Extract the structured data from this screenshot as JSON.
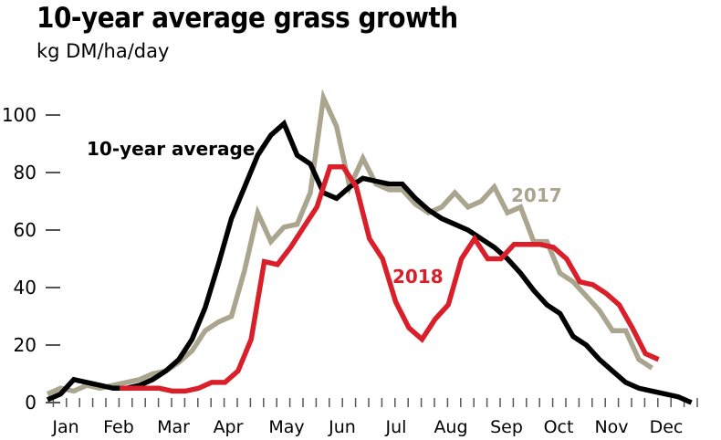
{
  "chart_data": {
    "type": "line",
    "title": "10-year average grass growth",
    "subtitle": "kg DM/ha/day",
    "xlabel": "",
    "ylabel": "kg DM/ha/day",
    "ylim": [
      0,
      110
    ],
    "yticks": [
      0,
      20,
      40,
      60,
      80,
      100
    ],
    "ytick_labels": [
      "0",
      "20",
      "40",
      "60",
      "80",
      "100"
    ],
    "x_unit": "week of year",
    "xlim": [
      0,
      50
    ],
    "month_labels": [
      "Jan",
      "Feb",
      "Mar",
      "Apr",
      "May",
      "Jun",
      "Jul",
      "Aug",
      "Sep",
      "Oct",
      "Nov",
      "Dec"
    ],
    "grid": false,
    "series": [
      {
        "name": "10-year average",
        "label": "10-year average",
        "color": "#000000",
        "start_week": 0,
        "values": [
          1,
          3,
          8,
          7,
          6,
          5,
          5,
          6,
          8,
          11,
          15,
          22,
          33,
          48,
          64,
          75,
          86,
          93,
          97,
          86,
          83,
          73,
          71,
          75,
          78,
          77,
          76,
          76,
          71,
          67,
          64,
          62,
          60,
          57,
          54,
          50,
          45,
          39,
          34,
          31,
          23,
          20,
          15,
          11,
          7,
          5,
          4,
          3,
          2,
          0
        ]
      },
      {
        "name": "2017",
        "label": "2017",
        "color": "#a9a58e",
        "start_week": 0,
        "values": [
          3,
          5,
          4,
          6,
          5,
          6,
          7,
          8,
          10,
          11,
          14,
          18,
          25,
          28,
          30,
          46,
          66,
          56,
          61,
          62,
          73,
          106,
          96,
          75,
          85,
          76,
          74,
          74,
          69,
          66,
          68,
          73,
          68,
          70,
          75,
          66,
          68,
          56,
          56,
          45,
          42,
          37,
          32,
          25,
          25,
          15,
          12
        ]
      },
      {
        "name": "2018",
        "label": "2018",
        "color": "#d9202a",
        "start_week": 5.5,
        "values": [
          5,
          5,
          5,
          5,
          4,
          4,
          5,
          7,
          7,
          11,
          22,
          49,
          48,
          54,
          61,
          68,
          82,
          82,
          75,
          57,
          50,
          35,
          26,
          22,
          29,
          34,
          50,
          57,
          50,
          50,
          55,
          55,
          55,
          54,
          50,
          42,
          41,
          38,
          34,
          26,
          17,
          15
        ]
      }
    ]
  }
}
